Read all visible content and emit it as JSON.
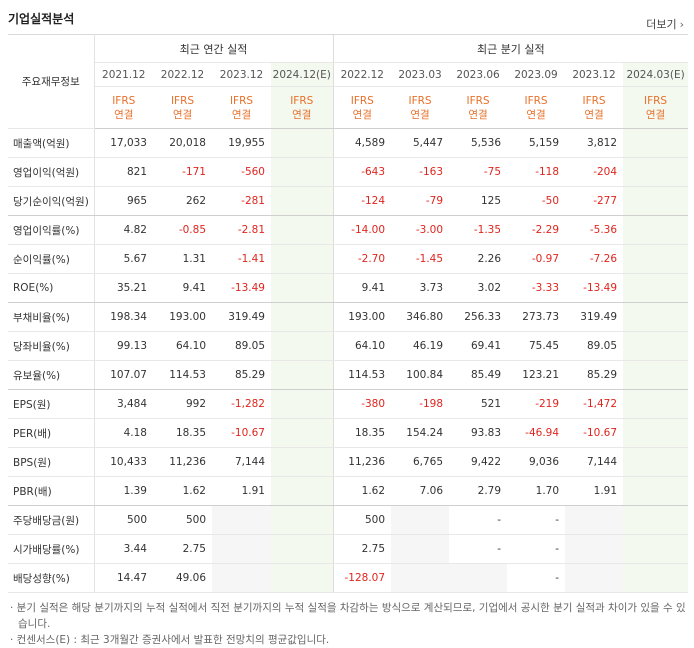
{
  "header": {
    "title": "기업실적분석",
    "more": "더보기"
  },
  "table": {
    "label_header": "주요재무정보",
    "annual_title": "최근 연간 실적",
    "quarter_title": "최근 분기 실적",
    "annual_periods": [
      "2021.12",
      "2022.12",
      "2023.12",
      "2024.12(E)"
    ],
    "quarter_periods": [
      "2022.12",
      "2023.03",
      "2023.06",
      "2023.09",
      "2023.12",
      "2024.03(E)"
    ],
    "ifrs_line1": "IFRS",
    "ifrs_line2": "연결",
    "rows": [
      {
        "label": "매출액(억원)",
        "values": [
          "17,033",
          "20,018",
          "19,955",
          "",
          "4,589",
          "5,447",
          "5,536",
          "5,159",
          "3,812",
          ""
        ]
      },
      {
        "label": "영업이익(억원)",
        "values": [
          "821",
          "-171",
          "-560",
          "",
          "-643",
          "-163",
          "-75",
          "-118",
          "-204",
          ""
        ]
      },
      {
        "label": "당기순이익(억원)",
        "values": [
          "965",
          "262",
          "-281",
          "",
          "-124",
          "-79",
          "125",
          "-50",
          "-277",
          ""
        ]
      },
      {
        "label": "영업이익률(%)",
        "values": [
          "4.82",
          "-0.85",
          "-2.81",
          "",
          "-14.00",
          "-3.00",
          "-1.35",
          "-2.29",
          "-5.36",
          ""
        ]
      },
      {
        "label": "순이익률(%)",
        "values": [
          "5.67",
          "1.31",
          "-1.41",
          "",
          "-2.70",
          "-1.45",
          "2.26",
          "-0.97",
          "-7.26",
          ""
        ]
      },
      {
        "label": "ROE(%)",
        "values": [
          "35.21",
          "9.41",
          "-13.49",
          "",
          "9.41",
          "3.73",
          "3.02",
          "-3.33",
          "-13.49",
          ""
        ]
      },
      {
        "label": "부채비율(%)",
        "values": [
          "198.34",
          "193.00",
          "319.49",
          "",
          "193.00",
          "346.80",
          "256.33",
          "273.73",
          "319.49",
          ""
        ]
      },
      {
        "label": "당좌비율(%)",
        "values": [
          "99.13",
          "64.10",
          "89.05",
          "",
          "64.10",
          "46.19",
          "69.41",
          "75.45",
          "89.05",
          ""
        ]
      },
      {
        "label": "유보율(%)",
        "values": [
          "107.07",
          "114.53",
          "85.29",
          "",
          "114.53",
          "100.84",
          "85.49",
          "123.21",
          "85.29",
          ""
        ]
      },
      {
        "label": "EPS(원)",
        "values": [
          "3,484",
          "992",
          "-1,282",
          "",
          "-380",
          "-198",
          "521",
          "-219",
          "-1,472",
          ""
        ]
      },
      {
        "label": "PER(배)",
        "values": [
          "4.18",
          "18.35",
          "-10.67",
          "",
          "18.35",
          "154.24",
          "93.83",
          "-46.94",
          "-10.67",
          ""
        ]
      },
      {
        "label": "BPS(원)",
        "values": [
          "10,433",
          "11,236",
          "7,144",
          "",
          "11,236",
          "6,765",
          "9,422",
          "9,036",
          "7,144",
          ""
        ]
      },
      {
        "label": "PBR(배)",
        "values": [
          "1.39",
          "1.62",
          "1.91",
          "",
          "1.62",
          "7.06",
          "2.79",
          "1.70",
          "1.91",
          ""
        ]
      },
      {
        "label": "주당배당금(원)",
        "values": [
          "500",
          "500",
          "",
          "",
          "500",
          "",
          "-",
          "-",
          "",
          ""
        ]
      },
      {
        "label": "시가배당률(%)",
        "values": [
          "3.44",
          "2.75",
          "",
          "",
          "2.75",
          "",
          "-",
          "-",
          "",
          ""
        ]
      },
      {
        "label": "배당성향(%)",
        "values": [
          "14.47",
          "49.06",
          "",
          "",
          "-128.07",
          "",
          "",
          "-",
          "",
          ""
        ]
      }
    ]
  },
  "notes": [
    "· 분기 실적은 해당 분기까지의 누적 실적에서 직전 분기까지의 누적 실적을 차감하는 방식으로 계산되므로, 기업에서 공시한 분기 실적과 차이가 있을 수 있습니다.",
    "· 컨센서스(E) : 최근 3개월간 증권사에서 발표한 전망치의 평균값입니다."
  ],
  "colors": {
    "negative": "#e0251e",
    "ifrs": "#e8702a",
    "estimate_bg": "#f3f9ef"
  }
}
